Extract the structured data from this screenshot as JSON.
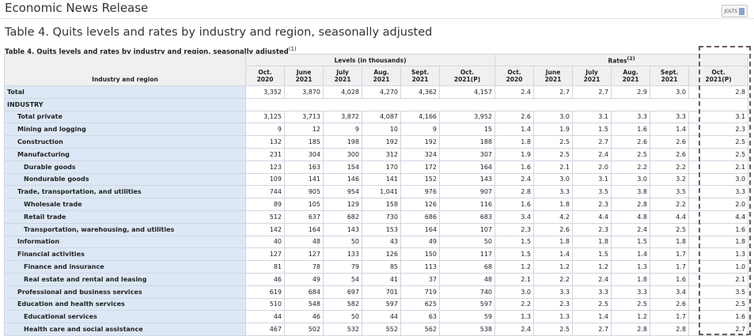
{
  "header": {
    "site_title": "Economic News Release",
    "pdf_label": "JOLTS"
  },
  "page": {
    "title": "Table 4. Quits levels and rates by industry and region, seasonally adjusted",
    "caption": "Table 4. Quits levels and rates by industry and region, seasonally adjusted",
    "caption_note": "(1)"
  },
  "table": {
    "stub_header": "Industry and region",
    "levels_header": "Levels (in thousands)",
    "rates_header": "Rates",
    "rates_note": "(2)",
    "columns": [
      {
        "l1": "Oct.",
        "l2": "2020"
      },
      {
        "l1": "June",
        "l2": "2021"
      },
      {
        "l1": "July",
        "l2": "2021"
      },
      {
        "l1": "Aug.",
        "l2": "2021"
      },
      {
        "l1": "Sept.",
        "l2": "2021"
      },
      {
        "l1": "Oct.",
        "l2": "2021(P)"
      },
      {
        "l1": "Oct.",
        "l2": "2020"
      },
      {
        "l1": "June",
        "l2": "2021"
      },
      {
        "l1": "July",
        "l2": "2021"
      },
      {
        "l1": "Aug.",
        "l2": "2021"
      },
      {
        "l1": "Sept.",
        "l2": "2021"
      },
      {
        "l1": "Oct.",
        "l2": "2021(P)"
      }
    ],
    "rows": [
      {
        "label": "Total",
        "indent": 0,
        "values": [
          "3,352",
          "3,870",
          "4,028",
          "4,270",
          "4,362",
          "4,157",
          "2.4",
          "2.7",
          "2.7",
          "2.9",
          "3.0",
          "2.8"
        ]
      },
      {
        "label": "INDUSTRY",
        "indent": 0,
        "section": true,
        "values": []
      },
      {
        "label": "Total private",
        "indent": 1,
        "values": [
          "3,125",
          "3,713",
          "3,872",
          "4,087",
          "4,166",
          "3,952",
          "2.6",
          "3.0",
          "3.1",
          "3.3",
          "3.3",
          "3.1"
        ]
      },
      {
        "label": "Mining and logging",
        "indent": 1,
        "values": [
          "9",
          "12",
          "9",
          "10",
          "9",
          "15",
          "1.4",
          "1.9",
          "1.5",
          "1.6",
          "1.4",
          "2.3"
        ]
      },
      {
        "label": "Construction",
        "indent": 1,
        "values": [
          "132",
          "185",
          "198",
          "192",
          "192",
          "188",
          "1.8",
          "2.5",
          "2.7",
          "2.6",
          "2.6",
          "2.5"
        ]
      },
      {
        "label": "Manufacturing",
        "indent": 1,
        "values": [
          "231",
          "304",
          "300",
          "312",
          "324",
          "307",
          "1.9",
          "2.5",
          "2.4",
          "2.5",
          "2.6",
          "2.5"
        ]
      },
      {
        "label": "Durable goods",
        "indent": 2,
        "values": [
          "123",
          "163",
          "154",
          "170",
          "172",
          "164",
          "1.6",
          "2.1",
          "2.0",
          "2.2",
          "2.2",
          "2.1"
        ]
      },
      {
        "label": "Nondurable goods",
        "indent": 2,
        "values": [
          "109",
          "141",
          "146",
          "141",
          "152",
          "143",
          "2.4",
          "3.0",
          "3.1",
          "3.0",
          "3.2",
          "3.0"
        ]
      },
      {
        "label": "Trade, transportation, and utilities",
        "indent": 1,
        "values": [
          "744",
          "905",
          "954",
          "1,041",
          "976",
          "907",
          "2.8",
          "3.3",
          "3.5",
          "3.8",
          "3.5",
          "3.3"
        ]
      },
      {
        "label": "Wholesale trade",
        "indent": 2,
        "values": [
          "89",
          "105",
          "129",
          "158",
          "126",
          "116",
          "1.6",
          "1.8",
          "2.3",
          "2.8",
          "2.2",
          "2.0"
        ]
      },
      {
        "label": "Retail trade",
        "indent": 2,
        "values": [
          "512",
          "637",
          "682",
          "730",
          "686",
          "683",
          "3.4",
          "4.2",
          "4.4",
          "4.8",
          "4.4",
          "4.4"
        ]
      },
      {
        "label": "Transportation, warehousing, and utilities",
        "indent": 2,
        "values": [
          "142",
          "164",
          "143",
          "153",
          "164",
          "107",
          "2.3",
          "2.6",
          "2.3",
          "2.4",
          "2.5",
          "1.6"
        ]
      },
      {
        "label": "Information",
        "indent": 1,
        "values": [
          "40",
          "48",
          "50",
          "43",
          "49",
          "50",
          "1.5",
          "1.8",
          "1.8",
          "1.5",
          "1.8",
          "1.8"
        ]
      },
      {
        "label": "Financial activities",
        "indent": 1,
        "values": [
          "127",
          "127",
          "133",
          "126",
          "150",
          "117",
          "1.5",
          "1.4",
          "1.5",
          "1.4",
          "1.7",
          "1.3"
        ]
      },
      {
        "label": "Finance and insurance",
        "indent": 2,
        "values": [
          "81",
          "78",
          "79",
          "85",
          "113",
          "68",
          "1.2",
          "1.2",
          "1.2",
          "1.3",
          "1.7",
          "1.0"
        ]
      },
      {
        "label": "Real estate and rental and leasing",
        "indent": 2,
        "values": [
          "46",
          "49",
          "54",
          "41",
          "37",
          "48",
          "2.1",
          "2.2",
          "2.4",
          "1.8",
          "1.6",
          "2.1"
        ]
      },
      {
        "label": "Professional and business services",
        "indent": 1,
        "values": [
          "619",
          "684",
          "697",
          "701",
          "719",
          "740",
          "3.0",
          "3.3",
          "3.3",
          "3.3",
          "3.4",
          "3.5"
        ]
      },
      {
        "label": "Education and health services",
        "indent": 1,
        "values": [
          "510",
          "548",
          "582",
          "597",
          "625",
          "597",
          "2.2",
          "2.3",
          "2.5",
          "2.5",
          "2.6",
          "2.5"
        ]
      },
      {
        "label": "Educational services",
        "indent": 2,
        "values": [
          "44",
          "46",
          "50",
          "44",
          "63",
          "59",
          "1.3",
          "1.3",
          "1.4",
          "1.2",
          "1.7",
          "1.6"
        ]
      },
      {
        "label": "Health care and social assistance",
        "indent": 2,
        "values": [
          "467",
          "502",
          "532",
          "552",
          "562",
          "538",
          "2.4",
          "2.5",
          "2.7",
          "2.8",
          "2.8",
          "2.7"
        ]
      }
    ]
  }
}
